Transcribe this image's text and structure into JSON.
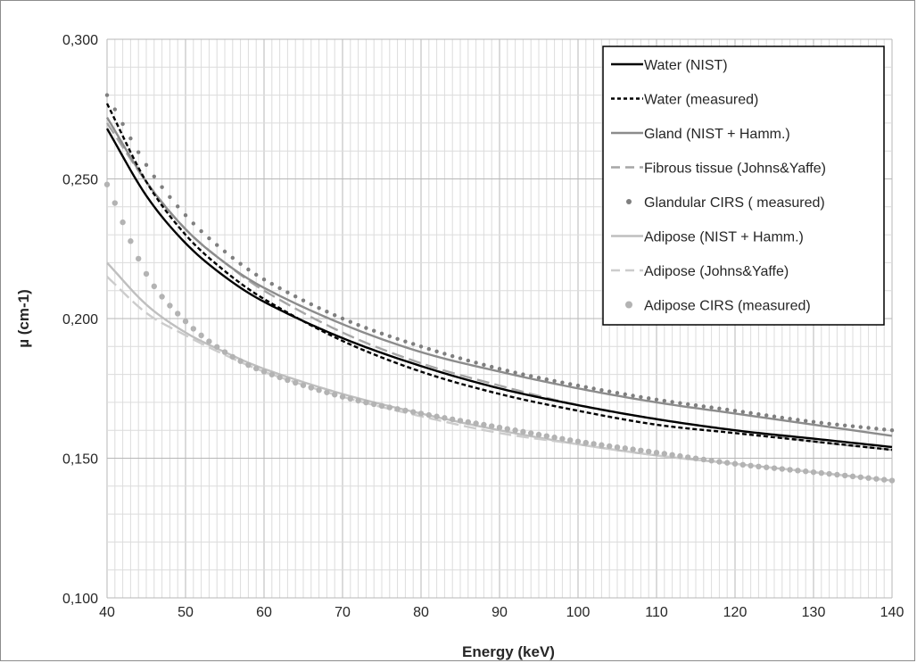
{
  "chart_data": {
    "type": "line",
    "title": "",
    "xlabel": "Energy (keV)",
    "ylabel": "µ (cm-1)",
    "xlim": [
      40,
      140
    ],
    "ylim": [
      0.1,
      0.3
    ],
    "x_ticks": [
      "40",
      "50",
      "60",
      "70",
      "80",
      "90",
      "100",
      "110",
      "120",
      "130",
      "140"
    ],
    "y_ticks": [
      "0,100",
      "0,150",
      "0,200",
      "0,250",
      "0,300"
    ],
    "grid": true,
    "legend_position": "top-right",
    "x": [
      40,
      45,
      50,
      55,
      60,
      70,
      80,
      90,
      100,
      110,
      120,
      130,
      140
    ],
    "series": [
      {
        "name": "Water (NIST)",
        "color": "#000000",
        "style": "solid",
        "values": [
          0.268,
          0.244,
          0.227,
          0.215,
          0.206,
          0.193,
          0.183,
          0.175,
          0.169,
          0.164,
          0.16,
          0.157,
          0.154
        ]
      },
      {
        "name": "Water (measured)",
        "color": "#000000",
        "style": "dashed",
        "values": [
          0.277,
          0.249,
          0.23,
          0.217,
          0.207,
          0.192,
          0.181,
          0.173,
          0.167,
          0.162,
          0.159,
          0.156,
          0.153
        ]
      },
      {
        "name": "Gland (NIST + Hamm.)",
        "color": "#8c8c8c",
        "style": "solid",
        "values": [
          0.272,
          0.249,
          0.232,
          0.22,
          0.211,
          0.198,
          0.188,
          0.181,
          0.175,
          0.17,
          0.166,
          0.162,
          0.158
        ]
      },
      {
        "name": "Fibrous tissue (Johns&Yaffe)",
        "color": "#a6a6a6",
        "style": "long-dash",
        "values": [
          0.27,
          0.249,
          0.232,
          0.22,
          0.21,
          0.195,
          0.184,
          0.176,
          0.169,
          0.164,
          0.16,
          0.156,
          0.153
        ]
      },
      {
        "name": "Glandular CIRS ( measured)",
        "color": "#7f7f7f",
        "style": "dots",
        "values": [
          0.28,
          0.255,
          0.237,
          0.224,
          0.214,
          0.2,
          0.19,
          0.182,
          0.176,
          0.171,
          0.167,
          0.163,
          0.16
        ]
      },
      {
        "name": "Adipose (NIST + Hamm.)",
        "color": "#bfbfbf",
        "style": "solid",
        "values": [
          0.22,
          0.205,
          0.195,
          0.188,
          0.182,
          0.173,
          0.166,
          0.16,
          0.155,
          0.151,
          0.148,
          0.145,
          0.142
        ]
      },
      {
        "name": "Adipose (Johns&Yaffe)",
        "color": "#cccccc",
        "style": "long-dash",
        "values": [
          0.215,
          0.202,
          0.194,
          0.187,
          0.181,
          0.172,
          0.165,
          0.159,
          0.155,
          0.151,
          0.148,
          0.145,
          0.142
        ]
      },
      {
        "name": "Adipose CIRS (measured)",
        "color": "#b3b3b3",
        "style": "circles",
        "values": [
          0.248,
          0.216,
          0.199,
          0.188,
          0.181,
          0.172,
          0.166,
          0.161,
          0.156,
          0.152,
          0.148,
          0.145,
          0.142
        ]
      }
    ]
  }
}
